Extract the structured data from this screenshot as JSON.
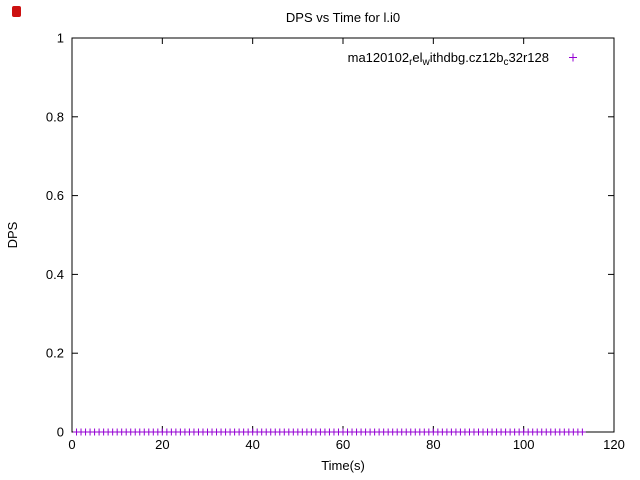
{
  "window": {
    "icon_color": "#cc1111",
    "background": "#ffffff",
    "frame_color": "#000000"
  },
  "chart_data": {
    "type": "scatter",
    "title": "DPS vs Time for l.i0",
    "xlabel": "Time(s)",
    "ylabel": "DPS",
    "xlim": [
      0,
      120
    ],
    "ylim": [
      0,
      1
    ],
    "grid": false,
    "legend_position": "top-right-inside",
    "xticks": [
      {
        "v": 0,
        "label": "0"
      },
      {
        "v": 20,
        "label": "20"
      },
      {
        "v": 40,
        "label": "40"
      },
      {
        "v": 60,
        "label": "60"
      },
      {
        "v": 80,
        "label": "80"
      },
      {
        "v": 100,
        "label": "100"
      },
      {
        "v": 120,
        "label": "120"
      }
    ],
    "yticks": [
      {
        "v": 0,
        "label": "0"
      },
      {
        "v": 0.2,
        "label": "0.2"
      },
      {
        "v": 0.4,
        "label": "0.4"
      },
      {
        "v": 0.6,
        "label": "0.6"
      },
      {
        "v": 0.8,
        "label": "0.8"
      },
      {
        "v": 1,
        "label": "1"
      }
    ],
    "series": [
      {
        "name": "ma120102_rel_withdbg.cz12b_c32r128",
        "label_parts": [
          {
            "text": "ma120102",
            "sub": false
          },
          {
            "text": "r",
            "sub": true
          },
          {
            "text": "el",
            "sub": false
          },
          {
            "text": "w",
            "sub": true
          },
          {
            "text": "ithdbg.cz12b",
            "sub": false
          },
          {
            "text": "c",
            "sub": true
          },
          {
            "text": "32r128",
            "sub": false
          }
        ],
        "marker": "plus",
        "color": "#9400D3",
        "x": [
          1,
          2,
          3,
          4,
          5,
          6,
          7,
          8,
          9,
          10,
          11,
          12,
          13,
          14,
          15,
          16,
          17,
          18,
          19,
          20,
          21,
          22,
          23,
          24,
          25,
          26,
          27,
          28,
          29,
          30,
          31,
          32,
          33,
          34,
          35,
          36,
          37,
          38,
          39,
          40,
          41,
          42,
          43,
          44,
          45,
          46,
          47,
          48,
          49,
          50,
          51,
          52,
          53,
          54,
          55,
          56,
          57,
          58,
          59,
          60,
          61,
          62,
          63,
          64,
          65,
          66,
          67,
          68,
          69,
          70,
          71,
          72,
          73,
          74,
          75,
          76,
          77,
          78,
          79,
          80,
          81,
          82,
          83,
          84,
          85,
          86,
          87,
          88,
          89,
          90,
          91,
          92,
          93,
          94,
          95,
          96,
          97,
          98,
          99,
          100,
          101,
          102,
          103,
          104,
          105,
          106,
          107,
          108,
          109,
          110,
          111,
          112,
          113
        ],
        "y_constant": 0
      }
    ]
  }
}
